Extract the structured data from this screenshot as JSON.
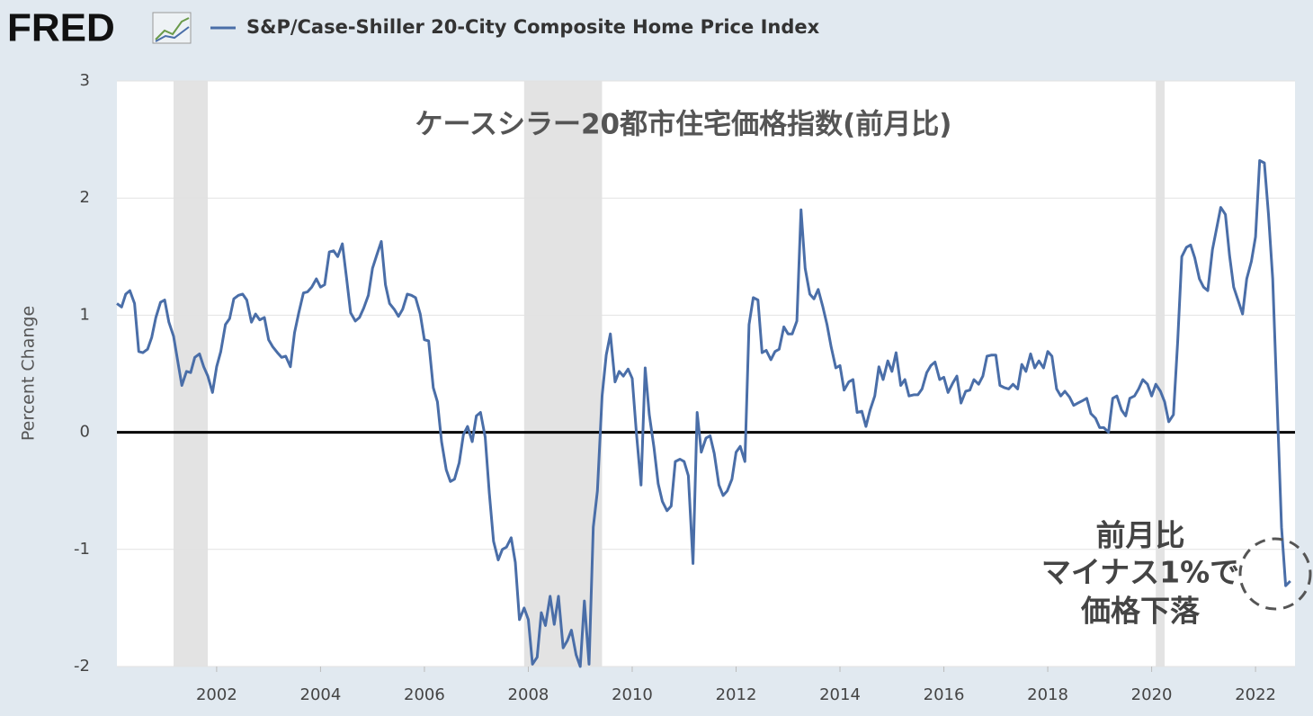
{
  "header": {
    "logo": "FRED"
  },
  "chart_data": {
    "type": "line",
    "title": "ケースシラー20都市住宅価格指数(前月比)",
    "annotations": [
      "前月比",
      "マイナス1%で",
      "価格下落"
    ],
    "ylabel": "Percent Change",
    "xlim": [
      2000.08,
      2022.76
    ],
    "xticks": [
      2002,
      2004,
      2006,
      2008,
      2010,
      2012,
      2014,
      2016,
      2018,
      2020,
      2022
    ],
    "ylim": [
      -2,
      3
    ],
    "yticks": [
      -2,
      -1,
      0,
      1,
      2,
      3
    ],
    "grid": true,
    "recessions": [
      [
        2001.17,
        2001.83
      ],
      [
        2007.92,
        2009.42
      ],
      [
        2020.08,
        2020.25
      ]
    ],
    "x": [
      2000.08,
      2000.17,
      2000.25,
      2000.33,
      2000.42,
      2000.5,
      2000.58,
      2000.67,
      2000.75,
      2000.83,
      2000.92,
      2001,
      2001.08,
      2001.17,
      2001.25,
      2001.33,
      2001.42,
      2001.5,
      2001.58,
      2001.67,
      2001.75,
      2001.83,
      2001.92,
      2002,
      2002.08,
      2002.17,
      2002.25,
      2002.33,
      2002.42,
      2002.5,
      2002.58,
      2002.67,
      2002.75,
      2002.83,
      2002.92,
      2003,
      2003.08,
      2003.17,
      2003.25,
      2003.33,
      2003.42,
      2003.5,
      2003.58,
      2003.67,
      2003.75,
      2003.83,
      2003.92,
      2004,
      2004.08,
      2004.17,
      2004.25,
      2004.33,
      2004.42,
      2004.5,
      2004.58,
      2004.67,
      2004.75,
      2004.83,
      2004.92,
      2005,
      2005.08,
      2005.17,
      2005.25,
      2005.33,
      2005.42,
      2005.5,
      2005.58,
      2005.67,
      2005.75,
      2005.83,
      2005.92,
      2006,
      2006.08,
      2006.17,
      2006.25,
      2006.33,
      2006.42,
      2006.5,
      2006.58,
      2006.67,
      2006.75,
      2006.83,
      2006.92,
      2007,
      2007.08,
      2007.17,
      2007.25,
      2007.33,
      2007.42,
      2007.5,
      2007.58,
      2007.67,
      2007.75,
      2007.83,
      2007.92,
      2008,
      2008.08,
      2008.17,
      2008.25,
      2008.33,
      2008.42,
      2008.5,
      2008.58,
      2008.67,
      2008.75,
      2008.83,
      2008.92,
      2009,
      2009.08,
      2009.17,
      2009.25,
      2009.33,
      2009.42,
      2009.5,
      2009.58,
      2009.67,
      2009.75,
      2009.83,
      2009.92,
      2010,
      2010.08,
      2010.17,
      2010.25,
      2010.33,
      2010.42,
      2010.5,
      2010.58,
      2010.67,
      2010.75,
      2010.83,
      2010.92,
      2011,
      2011.08,
      2011.17,
      2011.25,
      2011.33,
      2011.42,
      2011.5,
      2011.58,
      2011.67,
      2011.75,
      2011.83,
      2011.92,
      2012,
      2012.08,
      2012.17,
      2012.25,
      2012.33,
      2012.42,
      2012.5,
      2012.58,
      2012.67,
      2012.75,
      2012.83,
      2012.92,
      2013,
      2013.08,
      2013.17,
      2013.25,
      2013.33,
      2013.42,
      2013.5,
      2013.58,
      2013.67,
      2013.75,
      2013.83,
      2013.92,
      2014,
      2014.08,
      2014.17,
      2014.25,
      2014.33,
      2014.42,
      2014.5,
      2014.58,
      2014.67,
      2014.75,
      2014.83,
      2014.92,
      2015,
      2015.08,
      2015.17,
      2015.25,
      2015.33,
      2015.42,
      2015.5,
      2015.58,
      2015.67,
      2015.75,
      2015.83,
      2015.92,
      2016,
      2016.08,
      2016.17,
      2016.25,
      2016.33,
      2016.42,
      2016.5,
      2016.58,
      2016.67,
      2016.75,
      2016.83,
      2016.92,
      2017,
      2017.08,
      2017.17,
      2017.25,
      2017.33,
      2017.42,
      2017.5,
      2017.58,
      2017.67,
      2017.75,
      2017.83,
      2017.92,
      2018,
      2018.08,
      2018.17,
      2018.25,
      2018.33,
      2018.42,
      2018.5,
      2018.58,
      2018.67,
      2018.75,
      2018.83,
      2018.92,
      2019,
      2019.08,
      2019.17,
      2019.25,
      2019.33,
      2019.42,
      2019.5,
      2019.58,
      2019.67,
      2019.75,
      2019.83,
      2019.92,
      2020,
      2020.08,
      2020.17,
      2020.25,
      2020.33,
      2020.42,
      2020.5,
      2020.58,
      2020.67,
      2020.75,
      2020.83,
      2020.92,
      2021,
      2021.08,
      2021.17,
      2021.25,
      2021.33,
      2021.42,
      2021.5,
      2021.58,
      2021.67,
      2021.75,
      2021.83,
      2021.92,
      2022,
      2022.08,
      2022.17,
      2022.25,
      2022.33,
      2022.42,
      2022.5,
      2022.58,
      2022.67
    ],
    "series": [
      {
        "name": "S&P/Case-Shiller 20-City Composite Home Price Index",
        "color": "#4a6ea8",
        "values": [
          1.1,
          1.07,
          1.18,
          1.21,
          1.1,
          0.69,
          0.68,
          0.71,
          0.81,
          0.98,
          1.11,
          1.13,
          0.94,
          0.82,
          0.61,
          0.4,
          0.52,
          0.51,
          0.64,
          0.67,
          0.56,
          0.48,
          0.34,
          0.56,
          0.69,
          0.92,
          0.97,
          1.14,
          1.17,
          1.18,
          1.13,
          0.94,
          1.01,
          0.96,
          0.98,
          0.79,
          0.73,
          0.68,
          0.64,
          0.65,
          0.56,
          0.85,
          1.02,
          1.19,
          1.2,
          1.24,
          1.31,
          1.24,
          1.26,
          1.54,
          1.55,
          1.5,
          1.61,
          1.32,
          1.02,
          0.95,
          0.98,
          1.06,
          1.17,
          1.4,
          1.51,
          1.63,
          1.26,
          1.1,
          1.05,
          0.99,
          1.05,
          1.18,
          1.17,
          1.15,
          1.01,
          0.79,
          0.78,
          0.38,
          0.26,
          -0.08,
          -0.32,
          -0.42,
          -0.4,
          -0.26,
          -0.02,
          0.05,
          -0.08,
          0.14,
          0.17,
          -0.04,
          -0.52,
          -0.93,
          -1.09,
          -1.0,
          -0.98,
          -0.9,
          -1.11,
          -1.6,
          -1.5,
          -1.6,
          -1.98,
          -1.92,
          -1.54,
          -1.65,
          -1.4,
          -1.64,
          -1.4,
          -1.84,
          -1.78,
          -1.69,
          -1.9,
          -2.0,
          -1.44,
          -1.98,
          -0.81,
          -0.5,
          0.31,
          0.66,
          0.84,
          0.43,
          0.52,
          0.48,
          0.54,
          0.46,
          0.0,
          -0.45,
          0.55,
          0.15,
          -0.13,
          -0.44,
          -0.59,
          -0.67,
          -0.63,
          -0.25,
          -0.23,
          -0.25,
          -0.37,
          -1.12,
          0.17,
          -0.17,
          -0.05,
          -0.03,
          -0.18,
          -0.45,
          -0.54,
          -0.5,
          -0.4,
          -0.17,
          -0.12,
          -0.25,
          0.92,
          1.15,
          1.13,
          0.68,
          0.7,
          0.62,
          0.69,
          0.71,
          0.9,
          0.84,
          0.84,
          0.95,
          1.9,
          1.4,
          1.18,
          1.14,
          1.22,
          1.07,
          0.92,
          0.73,
          0.55,
          0.57,
          0.36,
          0.43,
          0.45,
          0.17,
          0.18,
          0.05,
          0.19,
          0.31,
          0.56,
          0.45,
          0.61,
          0.52,
          0.68,
          0.4,
          0.45,
          0.31,
          0.32,
          0.32,
          0.37,
          0.51,
          0.57,
          0.6,
          0.45,
          0.47,
          0.34,
          0.42,
          0.48,
          0.25,
          0.35,
          0.36,
          0.45,
          0.41,
          0.48,
          0.65,
          0.66,
          0.66,
          0.4,
          0.38,
          0.37,
          0.41,
          0.37,
          0.58,
          0.52,
          0.67,
          0.55,
          0.61,
          0.55,
          0.69,
          0.65,
          0.37,
          0.31,
          0.35,
          0.3,
          0.23,
          0.25,
          0.27,
          0.29,
          0.16,
          0.12,
          0.04,
          0.04,
          0.0,
          0.29,
          0.31,
          0.19,
          0.14,
          0.29,
          0.31,
          0.37,
          0.45,
          0.41,
          0.31,
          0.41,
          0.35,
          0.26,
          0.09,
          0.15,
          0.77,
          1.5,
          1.58,
          1.6,
          1.49,
          1.31,
          1.24,
          1.21,
          1.56,
          1.74,
          1.92,
          1.86,
          1.51,
          1.24,
          1.12,
          1.01,
          1.31,
          1.46,
          1.67,
          2.32,
          2.3,
          1.86,
          1.31,
          0.19,
          -0.81,
          -1.31,
          -1.27
        ]
      }
    ]
  }
}
